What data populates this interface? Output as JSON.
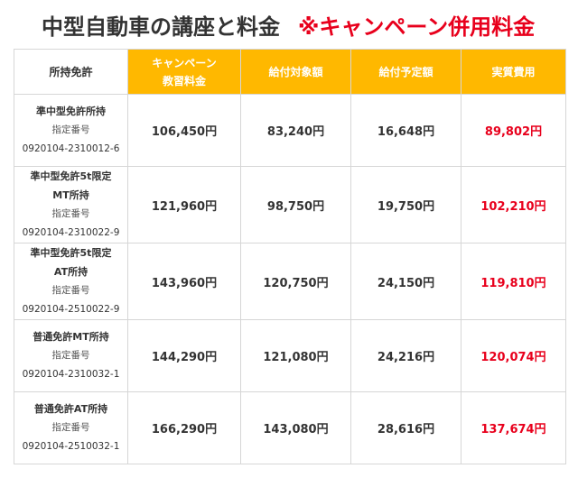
{
  "title": {
    "main": "中型自動車の講座と料金",
    "campaign": "※キャンペーン併用料金"
  },
  "table": {
    "headers": {
      "license": "所持免許",
      "campaign_line1": "キャンペーン",
      "campaign_line2": "教習料金",
      "subsidy": "給付対象額",
      "planned": "給付予定額",
      "actual": "実質費用"
    },
    "rows": [
      {
        "license_lines": [
          "準中型免許所持"
        ],
        "number_label": "指定番号",
        "number": "0920104-2310012-6",
        "campaign_fee": "106,450円",
        "subsidy": "83,240円",
        "planned": "16,648円",
        "actual": "89,802円"
      },
      {
        "license_lines": [
          "準中型免許5t限定",
          "MT所持"
        ],
        "number_label": "指定番号",
        "number": "0920104-2310022-9",
        "campaign_fee": "121,960円",
        "subsidy": "98,750円",
        "planned": "19,750円",
        "actual": "102,210円"
      },
      {
        "license_lines": [
          "準中型免許5t限定",
          "AT所持"
        ],
        "number_label": "指定番号",
        "number": "0920104-2510022-9",
        "campaign_fee": "143,960円",
        "subsidy": "120,750円",
        "planned": "24,150円",
        "actual": "119,810円"
      },
      {
        "license_lines": [
          "普通免許MT所持"
        ],
        "number_label": "指定番号",
        "number": "0920104-2310032-1",
        "campaign_fee": "144,290円",
        "subsidy": "121,080円",
        "planned": "24,216円",
        "actual": "120,074円"
      },
      {
        "license_lines": [
          "普通免許AT所持"
        ],
        "number_label": "指定番号",
        "number": "0920104-2510032-1",
        "campaign_fee": "166,290円",
        "subsidy": "143,080円",
        "planned": "28,616円",
        "actual": "137,674円"
      }
    ]
  },
  "colors": {
    "header_accent": "#ffb800",
    "campaign_red": "#e8001c",
    "text": "#333333",
    "border": "#d6d6d6"
  }
}
